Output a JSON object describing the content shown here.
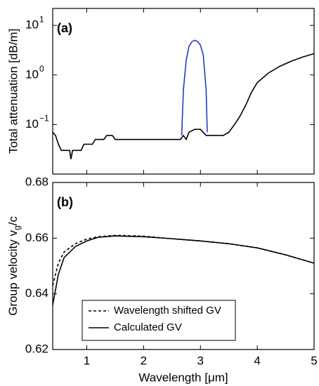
{
  "chart_data": [
    {
      "type": "line",
      "panel_label": "(a)",
      "ylabel": "Total attenuation [dB/m]",
      "log_y": true,
      "xlim": [
        0.4,
        5
      ],
      "xticks": [
        1,
        2,
        3,
        4,
        5
      ],
      "show_xtick_labels": false,
      "ylim": [
        0.01,
        22
      ],
      "yticks": [
        {
          "value": 0.1,
          "label": "10",
          "exponent": "−1"
        },
        {
          "value": 1,
          "label": "10",
          "exponent": "0"
        },
        {
          "value": 10,
          "label": "10",
          "exponent": "1"
        }
      ],
      "series": [
        {
          "color": "#1f3fbf",
          "linestyle": "solid",
          "x": [
            2.67,
            2.7,
            2.75,
            2.8,
            2.85,
            2.9,
            2.95,
            3.0,
            3.05,
            3.1,
            3.12
          ],
          "values": [
            0.06,
            0.5,
            2,
            3.8,
            4.7,
            5,
            4.7,
            4,
            2.5,
            0.5,
            0.07
          ]
        },
        {
          "color": "#000000",
          "linestyle": "solid",
          "x": [
            0.4,
            0.45,
            0.5,
            0.55,
            0.7,
            0.72,
            0.75,
            0.9,
            0.95,
            1.1,
            1.15,
            1.3,
            1.35,
            1.45,
            1.5,
            2.65,
            2.7,
            2.75,
            2.8,
            2.9,
            3.0,
            3.1,
            3.4,
            3.5,
            3.6,
            3.7,
            3.8,
            3.9,
            4.0,
            4.2,
            4.4,
            4.6,
            4.8,
            5.0
          ],
          "values": [
            0.07,
            0.06,
            0.04,
            0.03,
            0.03,
            0.02,
            0.03,
            0.03,
            0.04,
            0.04,
            0.05,
            0.05,
            0.06,
            0.06,
            0.05,
            0.05,
            0.06,
            0.05,
            0.07,
            0.08,
            0.08,
            0.06,
            0.06,
            0.07,
            0.1,
            0.15,
            0.25,
            0.45,
            0.7,
            1.1,
            1.5,
            1.9,
            2.3,
            2.7
          ]
        }
      ]
    },
    {
      "type": "line",
      "panel_label": "(b)",
      "ylabel_parts": [
        "Group velocity v",
        "g",
        "/c"
      ],
      "xlabel": "Wavelength [μm]",
      "log_y": false,
      "xlim": [
        0.4,
        5
      ],
      "xticks": [
        1,
        2,
        3,
        4,
        5
      ],
      "show_xtick_labels": true,
      "ylim": [
        0.62,
        0.68
      ],
      "yticks": [
        0.62,
        0.64,
        0.66,
        0.68
      ],
      "series": [
        {
          "name": "Wavelength shifted GV",
          "color": "#000000",
          "linestyle": "dashed",
          "x": [
            0.4,
            0.5,
            0.6,
            0.8,
            1.0,
            1.2,
            1.5,
            2.0,
            2.5,
            3.0,
            3.5,
            4.0,
            4.5,
            5.0
          ],
          "values": [
            0.643,
            0.651,
            0.655,
            0.658,
            0.6597,
            0.6605,
            0.661,
            0.6607,
            0.6598,
            0.659,
            0.658,
            0.6565,
            0.654,
            0.651
          ]
        },
        {
          "name": "Calculated GV",
          "color": "#000000",
          "linestyle": "solid",
          "x": [
            0.4,
            0.5,
            0.6,
            0.8,
            1.0,
            1.2,
            1.5,
            2.0,
            2.5,
            3.0,
            3.5,
            4.0,
            4.5,
            5.0
          ],
          "values": [
            0.636,
            0.647,
            0.653,
            0.657,
            0.659,
            0.6603,
            0.6608,
            0.6605,
            0.6598,
            0.659,
            0.658,
            0.6565,
            0.654,
            0.651
          ]
        }
      ]
    }
  ]
}
